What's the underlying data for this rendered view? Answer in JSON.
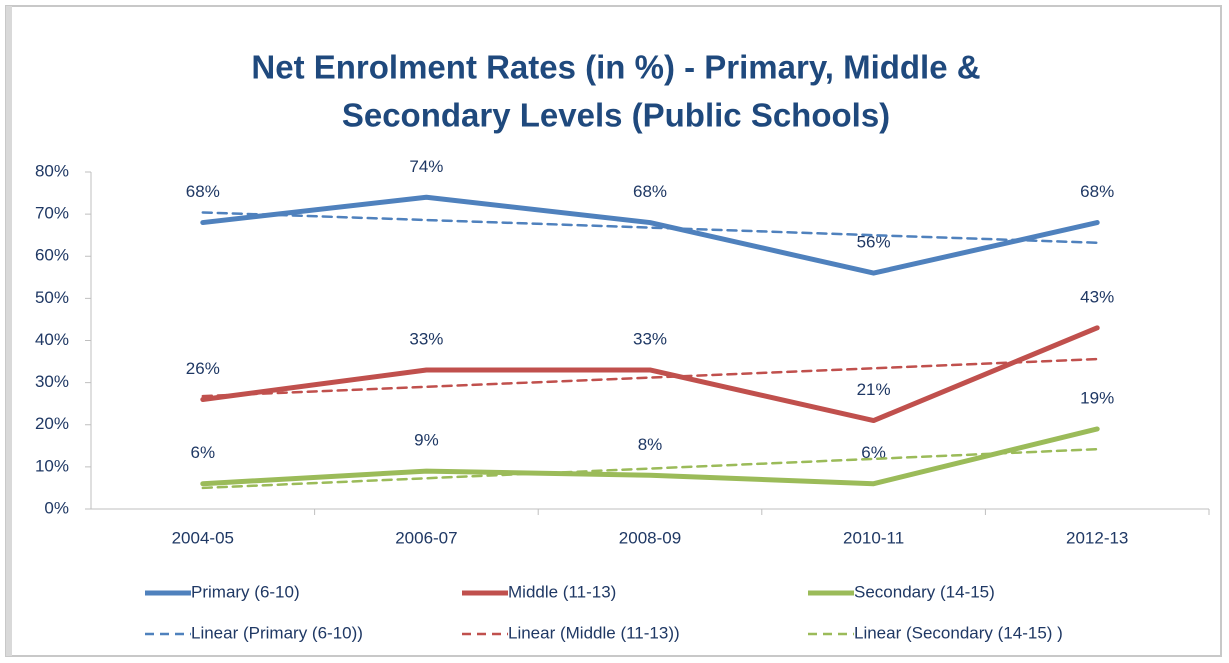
{
  "chart_data": {
    "type": "line",
    "title": [
      "Net Enrolment Rates (in %) - Primary, Middle &",
      "Secondary Levels (Public Schools)"
    ],
    "categories": [
      "2004-05",
      "2006-07",
      "2008-09",
      "2010-11",
      "2012-13"
    ],
    "ylim": [
      0,
      80
    ],
    "yticks": [
      {
        "value": 0,
        "label": "0%"
      },
      {
        "value": 10,
        "label": "10%"
      },
      {
        "value": 20,
        "label": "20%"
      },
      {
        "value": 30,
        "label": "30%"
      },
      {
        "value": 40,
        "label": "40%"
      },
      {
        "value": 50,
        "label": "50%"
      },
      {
        "value": 60,
        "label": "60%"
      },
      {
        "value": 70,
        "label": "70%"
      },
      {
        "value": 80,
        "label": "80%"
      }
    ],
    "grid": false,
    "legend": "bottom",
    "series": [
      {
        "name": "Primary (6-10)",
        "color": "#4f81bd",
        "values": [
          68,
          74,
          68,
          56,
          68
        ],
        "value_labels": [
          "68%",
          "74%",
          "68%",
          "56%",
          "68%"
        ]
      },
      {
        "name": "Middle (11-13)",
        "color": "#c0504d",
        "values": [
          26,
          33,
          33,
          21,
          43
        ],
        "value_labels": [
          "26%",
          "33%",
          "33%",
          "21%",
          "43%"
        ]
      },
      {
        "name": "Secondary (14-15)",
        "color": "#9bbb59",
        "values": [
          6,
          9,
          8,
          6,
          19
        ],
        "value_labels": [
          "6%",
          "9%",
          "8%",
          "6%",
          "19%"
        ]
      },
      {
        "name": "Linear (Primary (6-10))",
        "color": "#4f81bd",
        "dashed": true,
        "values": [
          70.4,
          68.6,
          66.8,
          65,
          63.2
        ]
      },
      {
        "name": "Linear (Middle (11-13))",
        "color": "#c0504d",
        "dashed": true,
        "values": [
          26.8,
          29,
          31.2,
          33.4,
          35.6
        ]
      },
      {
        "name": "Linear (Secondary (14-15) )",
        "color": "#9bbb59",
        "dashed": true,
        "values": [
          5,
          7.3,
          9.6,
          11.9,
          14.2
        ]
      }
    ]
  }
}
